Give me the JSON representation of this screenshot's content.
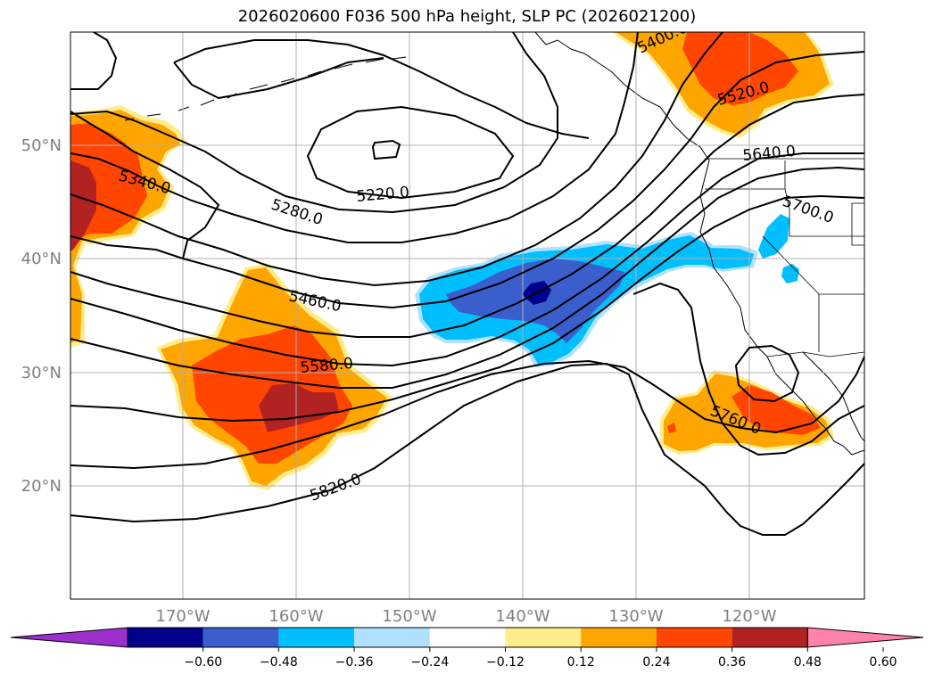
{
  "title": "2026020600 F036 500 hPa height, SLP PC (2026021200)",
  "longitude_labels": [
    "170°W",
    "160°W",
    "150°W",
    "140°W",
    "130°W",
    "120°W"
  ],
  "latitude_labels": [
    "50°N",
    "40°N",
    "30°N",
    "20°N"
  ],
  "contour_labels": [
    {
      "text": "5400.0",
      "lon": -129.4,
      "lat": 58.2
    },
    {
      "text": "5520.0",
      "lon": -122.8,
      "lat": 55.1
    },
    {
      "text": "5640.0",
      "lon": -118.4,
      "lat": 47.2
    },
    {
      "text": "5700.0",
      "lon": -114.1,
      "lat": 43.8
    },
    {
      "text": "5340.0",
      "lon": -174.7,
      "lat": 47.3
    },
    {
      "text": "5220.0",
      "lon": -151.0,
      "lat": 46.0
    },
    {
      "text": "5280.0",
      "lon": -160.3,
      "lat": 44.1
    },
    {
      "text": "5460.0",
      "lon": -158.2,
      "lat": 35.6
    },
    {
      "text": "5580.0",
      "lon": -157.0,
      "lat": 30.8
    },
    {
      "text": "5760.0",
      "lon": -120.0,
      "lat": 25.9
    },
    {
      "text": "5820.0",
      "lon": -154.2,
      "lat": 19.6
    }
  ],
  "colorbar": {
    "ticks": [
      "−0.60",
      "−0.48",
      "−0.36",
      "−0.24",
      "−0.12",
      "0.12",
      "0.24",
      "0.36",
      "0.48",
      "0.60"
    ],
    "colors": [
      "#9b30cc",
      "#00008b",
      "#3a5fcd",
      "#00bfff",
      "#b0e2ff",
      "#ffffff",
      "#ffec8b",
      "#ffa500",
      "#ff4500",
      "#b22222",
      "#ff82ab"
    ]
  },
  "shading_colors": {
    "light_blue": "#b0e2ff",
    "blue": "#00bfff",
    "royal_blue": "#3a5fcd",
    "navy": "#00008b",
    "yellow": "#ffec8b",
    "orange": "#ffa500",
    "orangered": "#ff4500",
    "firebrick": "#b22222"
  }
}
